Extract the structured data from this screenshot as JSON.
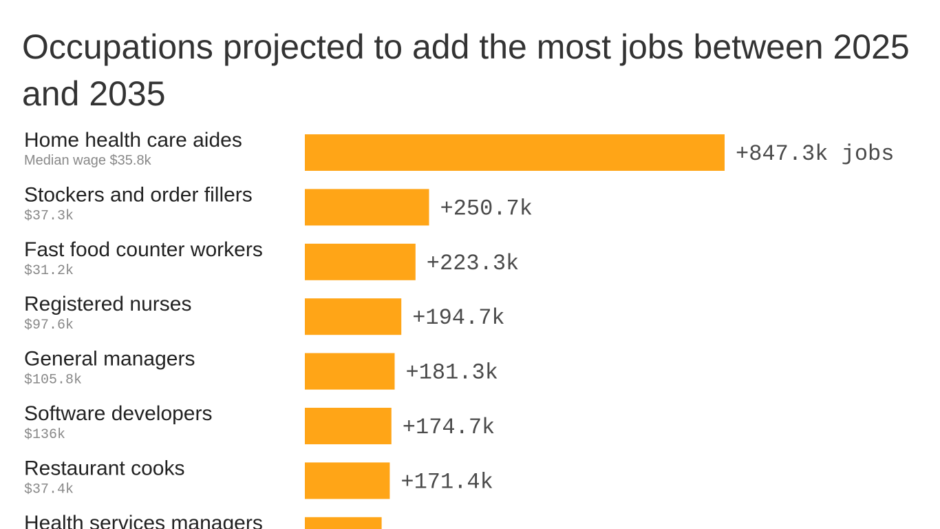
{
  "chart_data": {
    "type": "bar",
    "orientation": "horizontal",
    "title": "Occupations projected to add the most jobs between 2025 and 2035",
    "categories": [
      "Home health care aides",
      "Stockers and order fillers",
      "Fast food counter workers",
      "Registered nurses",
      "General managers",
      "Software developers",
      "Restaurant cooks",
      "Health services managers"
    ],
    "wages": [
      "Median wage $35.8k",
      "$37.3k",
      "$31.2k",
      "$97.6k",
      "$105.8k",
      "$136k",
      "$37.4k",
      ""
    ],
    "values": [
      847.3,
      250.7,
      223.3,
      194.7,
      181.3,
      174.7,
      171.4,
      155
    ],
    "value_labels": [
      "+847.3k jobs",
      "+250.7k",
      "+223.3k",
      "+194.7k",
      "+181.3k",
      "+174.7k",
      "+171.4k",
      ""
    ],
    "units": "thousand jobs",
    "bar_color": "#FFA517",
    "grid": false,
    "legend": "none"
  }
}
